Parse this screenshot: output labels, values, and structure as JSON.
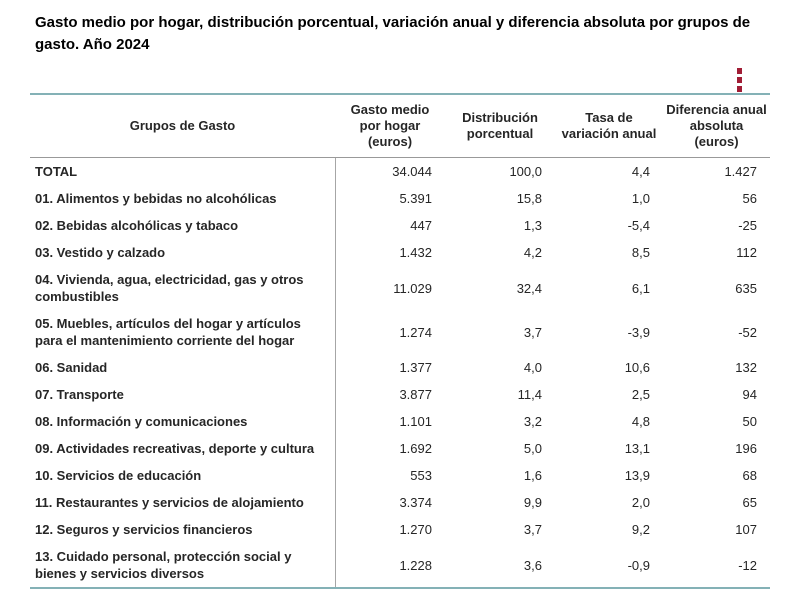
{
  "page": {
    "title": "Gasto medio por hogar, distribución porcentual, variación anual y diferencia absoluta por grupos de gasto. Año 2024"
  },
  "menu": {
    "icon": "kebab-menu-icon"
  },
  "colors": {
    "accent_red": "#a11d35",
    "table_border_teal": "#84b1b6",
    "header_rule_gray": "#999999",
    "column_divider_gray": "#a6a6a6",
    "text": "#262626"
  },
  "table": {
    "columns": [
      {
        "lines": [
          "Grupos de Gasto"
        ]
      },
      {
        "lines": [
          "Gasto medio",
          "por hogar",
          "(euros)"
        ]
      },
      {
        "lines": [
          "Distribución",
          "porcentual"
        ]
      },
      {
        "lines": [
          "Tasa de",
          "variación anual"
        ]
      },
      {
        "lines": [
          "Diferencia anual",
          "absoluta",
          "(euros)"
        ]
      }
    ],
    "rows": [
      {
        "label": "TOTAL",
        "values": [
          "34.044",
          "100,0",
          "4,4",
          "1.427"
        ]
      },
      {
        "label": "01. Alimentos y bebidas no alcohólicas",
        "values": [
          "5.391",
          "15,8",
          "1,0",
          "56"
        ]
      },
      {
        "label": "02. Bebidas alcohólicas y tabaco",
        "values": [
          "447",
          "1,3",
          "-5,4",
          "-25"
        ]
      },
      {
        "label": "03. Vestido y calzado",
        "values": [
          "1.432",
          "4,2",
          "8,5",
          "112"
        ]
      },
      {
        "label": "04. Vivienda, agua, electricidad, gas y otros combustibles",
        "values": [
          "11.029",
          "32,4",
          "6,1",
          "635"
        ]
      },
      {
        "label": "05. Muebles, artículos del hogar y artículos para el mantenimiento corriente del hogar",
        "values": [
          "1.274",
          "3,7",
          "-3,9",
          "-52"
        ]
      },
      {
        "label": "06. Sanidad",
        "values": [
          "1.377",
          "4,0",
          "10,6",
          "132"
        ]
      },
      {
        "label": "07. Transporte",
        "values": [
          "3.877",
          "11,4",
          "2,5",
          "94"
        ]
      },
      {
        "label": "08. Información y comunicaciones",
        "values": [
          "1.101",
          "3,2",
          "4,8",
          "50"
        ]
      },
      {
        "label": "09. Actividades recreativas, deporte y cultura",
        "values": [
          "1.692",
          "5,0",
          "13,1",
          "196"
        ]
      },
      {
        "label": "10. Servicios de educación",
        "values": [
          "553",
          "1,6",
          "13,9",
          "68"
        ]
      },
      {
        "label": "11. Restaurantes y servicios de alojamiento",
        "values": [
          "3.374",
          "9,9",
          "2,0",
          "65"
        ]
      },
      {
        "label": "12. Seguros y servicios financieros",
        "values": [
          "1.270",
          "3,7",
          "9,2",
          "107"
        ]
      },
      {
        "label": "13. Cuidado personal, protección social y bienes y servicios diversos",
        "values": [
          "1.228",
          "3,6",
          "-0,9",
          "-12"
        ]
      }
    ]
  }
}
